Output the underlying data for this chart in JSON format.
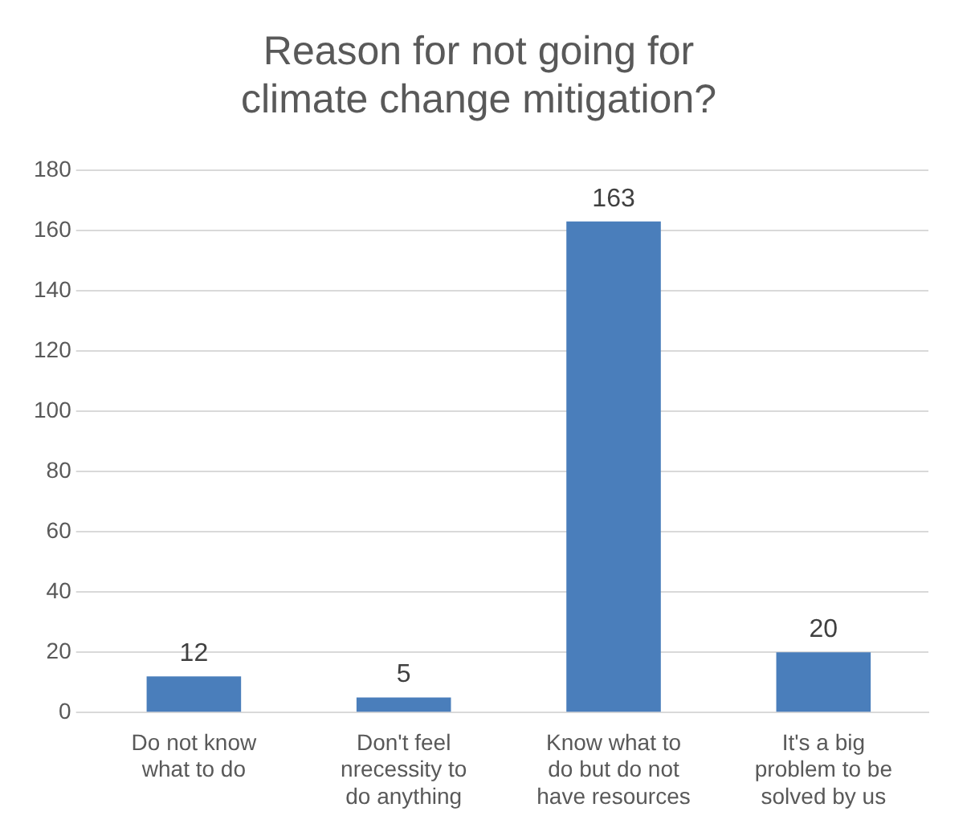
{
  "chart_data": {
    "type": "bar",
    "title": "Reason for not going for climate change mitigation?",
    "categories": [
      "Do not know what to do",
      "Don't feel nrecessity to do anything",
      "Know what to do but do not have resources",
      "It's a big problem to be solved by us"
    ],
    "values": [
      12,
      5,
      163,
      20
    ],
    "color": "#4a7ebb",
    "ylim": [
      0,
      180
    ],
    "yticks": [
      0,
      20,
      40,
      60,
      80,
      100,
      120,
      140,
      160,
      180
    ],
    "grid": "y",
    "data_labels": true,
    "legend": false
  }
}
